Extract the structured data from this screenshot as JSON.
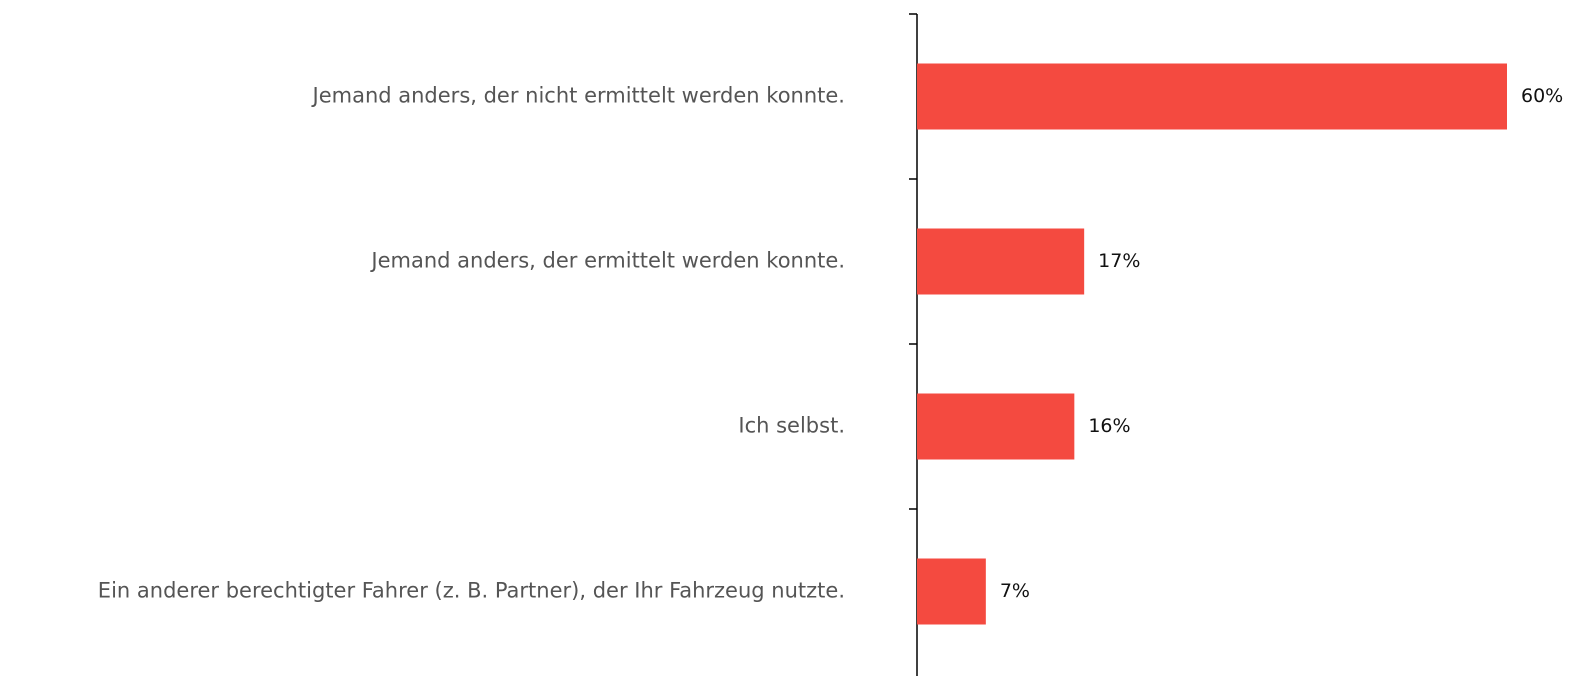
{
  "chart_data": {
    "type": "bar",
    "orientation": "horizontal",
    "categories": [
      "Jemand anders, der nicht ermittelt werden konnte.",
      "Jemand anders, der ermittelt werden konnte.",
      "Ich selbst.",
      "Ein anderer berechtigter Fahrer (z. B. Partner), der Ihr Fahrzeug nutzte."
    ],
    "values": [
      60,
      17,
      16,
      7
    ],
    "value_labels": [
      "60%",
      "17%",
      "16%",
      "7%"
    ],
    "color": "#f44a40"
  }
}
